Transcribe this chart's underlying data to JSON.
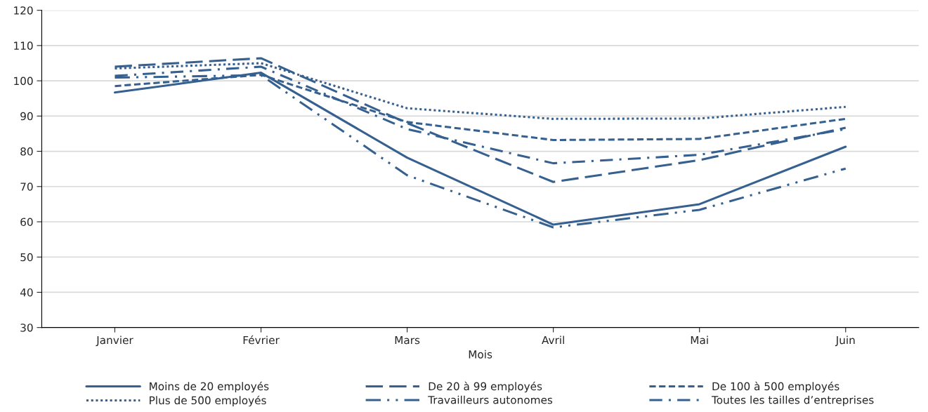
{
  "chart_data": {
    "type": "line",
    "xlabel": "Mois",
    "categories": [
      "Janvier",
      "Février",
      "Mars",
      "Avril",
      "Mai",
      "Juin"
    ],
    "ylim": [
      30,
      120
    ],
    "yticks": [
      30,
      40,
      50,
      60,
      70,
      80,
      90,
      100,
      110,
      120
    ],
    "grid": "y",
    "legend": "bottom",
    "marker": "none",
    "series": [
      {
        "name": "Moins de 20 employés",
        "color": "#35608f",
        "line_style": "solid",
        "values": [
          96.7,
          102.3,
          78.2,
          59.2,
          65.0,
          81.3
        ]
      },
      {
        "name": "De 20 à 99 employés",
        "color": "#35608f",
        "line_style": "longdash",
        "values": [
          104.0,
          106.4,
          88.0,
          71.3,
          77.5,
          86.7
        ]
      },
      {
        "name": "De 100 à 500 employés",
        "color": "#35608f",
        "line_style": "dashed",
        "values": [
          98.5,
          101.7,
          88.3,
          83.2,
          83.5,
          89.2
        ]
      },
      {
        "name": "Plus de 500 employés",
        "color": "#35608f",
        "line_style": "dotted",
        "values": [
          103.5,
          105.0,
          92.2,
          89.2,
          89.3,
          92.6
        ]
      },
      {
        "name": "Travailleurs autonomes",
        "color": "#35608f",
        "line_style": "longdashdotdot",
        "values": [
          100.9,
          101.6,
          73.2,
          58.4,
          63.4,
          75.1
        ]
      },
      {
        "name": "Toutes les tailles d’entreprises",
        "color": "#35608f",
        "line_style": "dashdot",
        "values": [
          101.4,
          104.0,
          86.3,
          76.6,
          79.0,
          86.3
        ]
      }
    ]
  }
}
